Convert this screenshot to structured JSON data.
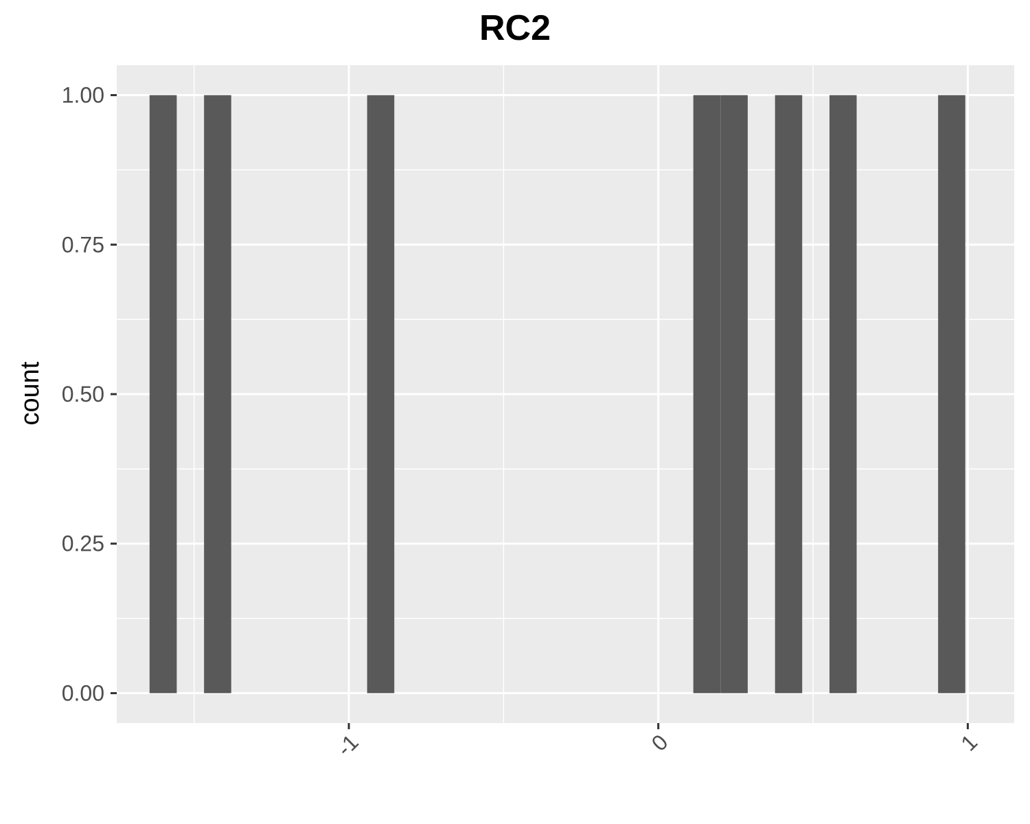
{
  "chart_data": {
    "type": "bar",
    "subtype": "histogram",
    "title": "RC2",
    "xlabel": "",
    "ylabel": "count",
    "xlim": [
      -1.75,
      1.15
    ],
    "ylim": [
      -0.05,
      1.05
    ],
    "x_ticks": [
      -1,
      0,
      1
    ],
    "x_tick_labels": [
      "-1",
      "0",
      "1"
    ],
    "y_ticks": [
      0,
      0.25,
      0.5,
      0.75,
      1
    ],
    "y_tick_labels": [
      "0.00",
      "0.25",
      "0.50",
      "0.75",
      "1.00"
    ],
    "x_tick_label_rotation": "-45deg",
    "bin_width": 0.0878,
    "bars": [
      {
        "x_center": -1.6,
        "count": 1
      },
      {
        "x_center": -1.424,
        "count": 1
      },
      {
        "x_center": -0.897,
        "count": 1
      },
      {
        "x_center": 0.157,
        "count": 1
      },
      {
        "x_center": 0.245,
        "count": 1
      },
      {
        "x_center": 0.421,
        "count": 1
      },
      {
        "x_center": 0.597,
        "count": 1
      },
      {
        "x_center": 0.948,
        "count": 1
      }
    ],
    "grid": true,
    "colors": {
      "panel_background": "#ebebeb",
      "grid": "#ffffff",
      "bar_fill": "#595959",
      "tick_mark": "#333333",
      "tick_label": "#4d4d4d"
    }
  }
}
